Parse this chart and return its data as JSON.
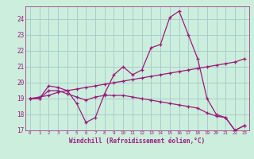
{
  "hours": [
    0,
    1,
    2,
    3,
    4,
    5,
    6,
    7,
    8,
    9,
    10,
    11,
    12,
    13,
    14,
    15,
    16,
    17,
    18,
    19,
    20,
    21,
    22,
    23
  ],
  "windchill": [
    19.0,
    19.0,
    19.8,
    19.7,
    19.5,
    18.7,
    17.5,
    17.8,
    19.3,
    20.5,
    21.0,
    20.5,
    20.8,
    22.2,
    22.4,
    24.1,
    24.5,
    23.0,
    21.5,
    19.0,
    18.0,
    17.8,
    17.0,
    17.3
  ],
  "ascending": [
    19.0,
    19.1,
    19.2,
    19.4,
    19.5,
    19.6,
    19.7,
    19.8,
    19.9,
    20.0,
    20.1,
    20.2,
    20.3,
    20.4,
    20.5,
    20.6,
    20.7,
    20.8,
    20.9,
    21.0,
    21.1,
    21.2,
    21.3,
    21.5
  ],
  "descending": [
    19.0,
    19.0,
    19.5,
    19.5,
    19.3,
    19.1,
    18.9,
    19.1,
    19.2,
    19.2,
    19.2,
    19.1,
    19.0,
    18.9,
    18.8,
    18.7,
    18.6,
    18.5,
    18.4,
    18.1,
    17.9,
    17.8,
    17.0,
    17.3
  ],
  "line_color": "#9b1a7a",
  "bg_color": "#cceedd",
  "grid_color": "#aacccc",
  "ylim_min": 17,
  "ylim_max": 24.8,
  "yticks": [
    17,
    18,
    19,
    20,
    21,
    22,
    23,
    24
  ],
  "xlabel": "Windchill (Refroidissement éolien,°C)"
}
